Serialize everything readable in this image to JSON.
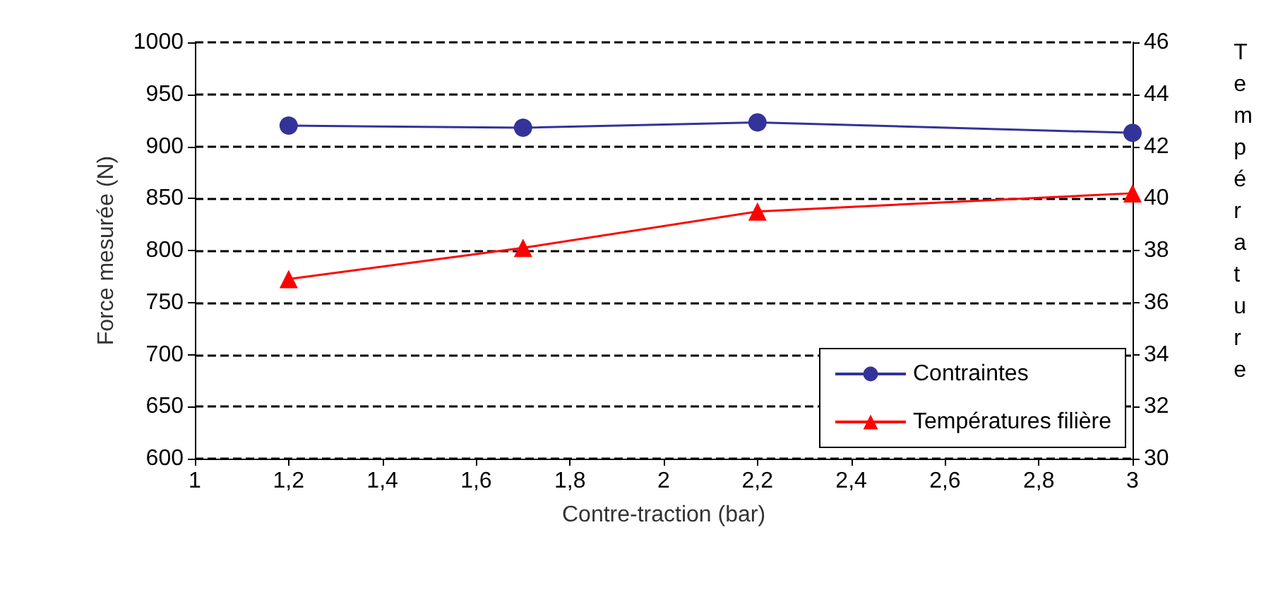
{
  "chart_data": {
    "type": "line",
    "xlabel": "Contre-traction (bar)",
    "ylabel": "Force mesurée (N)",
    "y2label": "Température",
    "x": [
      1.2,
      1.7,
      2.2,
      3
    ],
    "series": [
      {
        "name": "Contraintes",
        "color": "#333399",
        "values": [
          920,
          918,
          923,
          913
        ],
        "marker": "circle"
      },
      {
        "name": "Températures filière",
        "color": "#ff0000",
        "values": [
          36.9,
          38.1,
          39.5,
          40.2
        ],
        "axis": "y2",
        "marker": "triangle"
      }
    ],
    "xlim": [
      1,
      3
    ],
    "xticks": [
      1,
      {
        "value": 1.2,
        "label": "1,2"
      },
      {
        "value": 1.4,
        "label": "1,4"
      },
      {
        "value": 1.6,
        "label": "1,6"
      },
      {
        "value": 1.8,
        "label": "1,8"
      },
      2,
      {
        "value": 2.2,
        "label": "2,2"
      },
      {
        "value": 2.4,
        "label": "2,4"
      },
      {
        "value": 2.6,
        "label": "2,6"
      },
      {
        "value": 2.8,
        "label": "2,8"
      },
      3
    ],
    "ylim": [
      600,
      1000
    ],
    "yticks": [
      600,
      650,
      700,
      750,
      800,
      850,
      900,
      950,
      1000
    ],
    "y2lim": [
      30,
      46
    ],
    "y2ticks": [
      30,
      32,
      34,
      36,
      38,
      40,
      42,
      44,
      46
    ],
    "grid": "y",
    "legend": "bottom right",
    "line_style": "solid"
  }
}
